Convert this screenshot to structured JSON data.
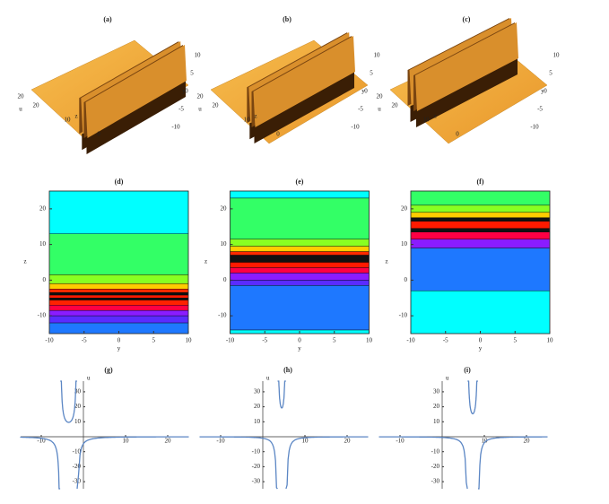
{
  "surface_panels": [
    {
      "label": "(a)",
      "z_ticks": [
        20,
        10,
        0
      ],
      "y_ticks": [
        10,
        5,
        0,
        -5,
        -10
      ],
      "u_label": "u",
      "u_tick": 20,
      "z_label": "z",
      "y_label": "y"
    },
    {
      "label": "(b)",
      "z_ticks": [
        20,
        10,
        0
      ],
      "y_ticks": [
        10,
        5,
        0,
        -5,
        -10
      ],
      "u_label": "u",
      "u_tick": 20,
      "z_label": "z",
      "y_label": "y"
    },
    {
      "label": "(c)",
      "z_ticks": [
        20,
        10,
        0
      ],
      "y_ticks": [
        10,
        5,
        0,
        -5,
        -10
      ],
      "u_label": "u",
      "u_tick": 20,
      "z_label": "z",
      "y_label": "y"
    }
  ],
  "contour_panels": [
    {
      "label": "(d)",
      "x_label": "y",
      "y_label": "z",
      "xticks": [
        -10,
        -5,
        0,
        5,
        10
      ],
      "yticks": [
        20,
        10,
        0,
        -10
      ]
    },
    {
      "label": "(e)",
      "x_label": "y",
      "y_label": "z",
      "xticks": [
        -10,
        -5,
        0,
        5,
        10
      ],
      "yticks": [
        20,
        10,
        0,
        -10
      ]
    },
    {
      "label": "(f)",
      "x_label": "y",
      "y_label": "z",
      "xticks": [
        -10,
        -5,
        0,
        5,
        10
      ],
      "yticks": [
        20,
        10,
        0,
        -10
      ]
    }
  ],
  "line_panels": [
    {
      "label": "(g)",
      "y_label": "u",
      "xticks": [
        -10,
        10,
        20
      ],
      "yticks": [
        30,
        20,
        10,
        -10,
        -20,
        -30
      ]
    },
    {
      "label": "(h)",
      "y_label": "u",
      "xticks": [
        -10,
        10,
        20
      ],
      "yticks": [
        30,
        20,
        10,
        -10,
        -20,
        -30
      ]
    },
    {
      "label": "(i)",
      "y_label": "u",
      "xticks": [
        -10,
        10,
        20
      ],
      "yticks": [
        30,
        20,
        10,
        -10,
        -20,
        -30
      ]
    }
  ]
}
